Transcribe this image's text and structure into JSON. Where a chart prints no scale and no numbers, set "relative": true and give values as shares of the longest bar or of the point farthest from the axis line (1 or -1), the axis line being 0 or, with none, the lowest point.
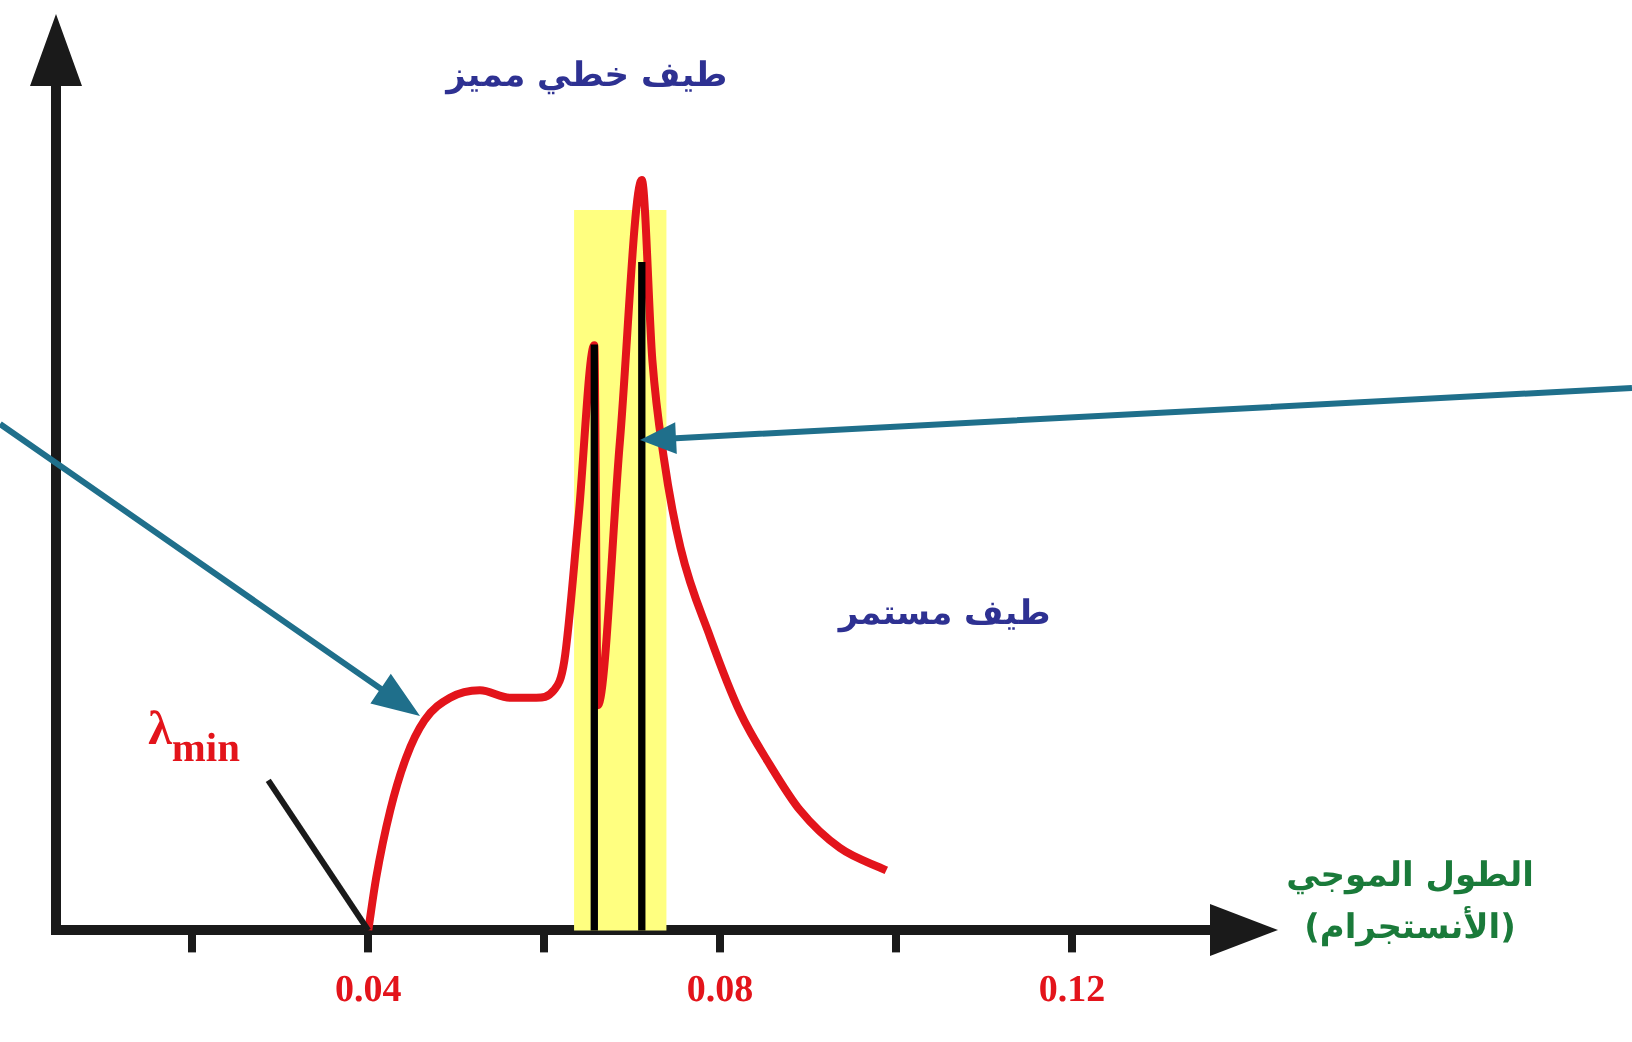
{
  "chart_data": {
    "type": "line",
    "relative": true,
    "marker": "none",
    "xlabel": "الطول الموجي\n(الأنستجرام)",
    "annotations": [
      "طيف خطي مميز",
      "طيف مستمر",
      {
        "text": "λ$_{min}$",
        "x": 0.04,
        "y": 0
      }
    ],
    "xlim": [
      0.0045,
      0.1357
    ],
    "xticks": [
      {
        "value": 0.02,
        "label": null
      },
      0.04,
      {
        "value": 0.06,
        "label": null
      },
      0.08,
      {
        "value": 0.1,
        "label": null
      },
      0.12
    ],
    "bands": [
      {
        "axis": "x",
        "from": 0.0634,
        "to": 0.0739,
        "color": "#ffff80"
      }
    ],
    "series": [
      {
        "type": "line",
        "color": "#e3141b",
        "x": [
          0.04,
          0.0409,
          0.0425,
          0.0443,
          0.0464,
          0.0493,
          0.0527,
          0.0561,
          0.0591,
          0.0611,
          0.0623,
          0.0639,
          0.0657,
          0.0661,
          0.0686,
          0.0711,
          0.0723,
          0.0736,
          0.0755,
          0.0789,
          0.0823,
          0.0857,
          0.0891,
          0.0936,
          0.0989
        ],
        "values": [
          0,
          0.07,
          0.16,
          0.23,
          0.28,
          0.31,
          0.32,
          0.31,
          0.31,
          0.32,
          0.36,
          0.55,
          0.78,
          0.3,
          0.65,
          1,
          0.76,
          0.63,
          0.51,
          0.39,
          0.29,
          0.22,
          0.16,
          0.11,
          0.08
        ]
      },
      {
        "type": "bar",
        "color": "#000000",
        "x": [
          0.0657,
          0.0711
        ],
        "values": [
          0.78,
          0.89
        ]
      }
    ]
  }
}
